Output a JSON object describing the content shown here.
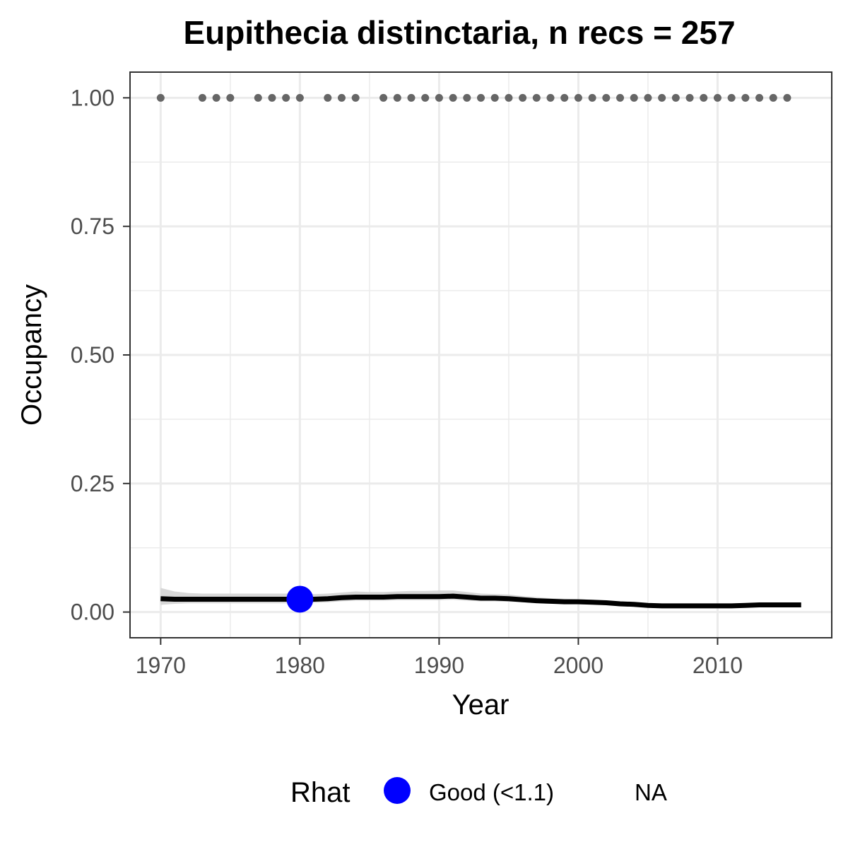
{
  "chart_data": {
    "type": "line",
    "title": "Eupithecia distinctaria, n recs = 257",
    "xlabel": "Year",
    "ylabel": "Occupancy",
    "xlim": [
      1967.8,
      2018.2
    ],
    "ylim": [
      -0.05,
      1.05
    ],
    "x_ticks": [
      1970,
      1980,
      1990,
      2000,
      2010
    ],
    "x_tick_labels": [
      "1970",
      "1980",
      "1990",
      "2000",
      "2010"
    ],
    "y_ticks": [
      0,
      0.25,
      0.5,
      0.75,
      1.0
    ],
    "y_tick_labels": [
      "0.00",
      "0.25",
      "0.50",
      "0.75",
      "1.00"
    ],
    "grid": true,
    "series": [
      {
        "role": "occupancy_mean",
        "color": "#000000",
        "x": [
          1970,
          1971,
          1972,
          1973,
          1974,
          1975,
          1976,
          1977,
          1978,
          1979,
          1980,
          1981,
          1982,
          1983,
          1984,
          1985,
          1986,
          1987,
          1988,
          1989,
          1990,
          1991,
          1992,
          1993,
          1994,
          1995,
          1996,
          1997,
          1998,
          1999,
          2000,
          2001,
          2002,
          2003,
          2004,
          2005,
          2006,
          2007,
          2008,
          2009,
          2010,
          2011,
          2012,
          2013,
          2014,
          2015,
          2016
        ],
        "y": [
          0.026,
          0.025,
          0.025,
          0.025,
          0.025,
          0.025,
          0.025,
          0.025,
          0.025,
          0.025,
          0.025,
          0.025,
          0.026,
          0.028,
          0.029,
          0.029,
          0.029,
          0.03,
          0.03,
          0.03,
          0.03,
          0.031,
          0.029,
          0.027,
          0.027,
          0.026,
          0.024,
          0.022,
          0.021,
          0.02,
          0.02,
          0.019,
          0.018,
          0.016,
          0.015,
          0.013,
          0.012,
          0.012,
          0.012,
          0.012,
          0.012,
          0.012,
          0.013,
          0.014,
          0.014,
          0.014,
          0.014
        ]
      },
      {
        "role": "credible_interval",
        "color": "#d3d3d3",
        "x": [
          1970,
          1971,
          1972,
          1973,
          1974,
          1975,
          1976,
          1977,
          1978,
          1979,
          1980,
          1981,
          1982,
          1983,
          1984,
          1985,
          1986,
          1987,
          1988,
          1989,
          1990,
          1991,
          1992,
          1993,
          1994,
          1995,
          1996,
          1997,
          1998,
          1999,
          2000,
          2001,
          2002,
          2003,
          2004,
          2005,
          2006,
          2007,
          2008,
          2009,
          2010,
          2011,
          2012,
          2013,
          2014,
          2015,
          2016
        ],
        "lower": [
          0.014,
          0.016,
          0.017,
          0.017,
          0.017,
          0.017,
          0.017,
          0.017,
          0.017,
          0.017,
          0.017,
          0.018,
          0.019,
          0.021,
          0.022,
          0.022,
          0.022,
          0.023,
          0.023,
          0.023,
          0.023,
          0.024,
          0.022,
          0.021,
          0.021,
          0.02,
          0.019,
          0.017,
          0.016,
          0.016,
          0.016,
          0.015,
          0.014,
          0.013,
          0.012,
          0.011,
          0.01,
          0.01,
          0.01,
          0.01,
          0.01,
          0.01,
          0.011,
          0.012,
          0.012,
          0.012,
          0.012
        ],
        "upper": [
          0.047,
          0.04,
          0.037,
          0.036,
          0.036,
          0.036,
          0.036,
          0.036,
          0.036,
          0.036,
          0.036,
          0.035,
          0.036,
          0.038,
          0.04,
          0.039,
          0.039,
          0.04,
          0.041,
          0.041,
          0.042,
          0.042,
          0.039,
          0.036,
          0.035,
          0.034,
          0.031,
          0.029,
          0.027,
          0.026,
          0.025,
          0.024,
          0.022,
          0.02,
          0.018,
          0.016,
          0.015,
          0.015,
          0.015,
          0.015,
          0.015,
          0.015,
          0.016,
          0.017,
          0.017,
          0.017,
          0.017
        ]
      },
      {
        "role": "record_years",
        "color": "#666666",
        "x": [
          1970,
          1973,
          1974,
          1975,
          1977,
          1978,
          1979,
          1980,
          1982,
          1983,
          1984,
          1986,
          1987,
          1988,
          1989,
          1990,
          1991,
          1992,
          1993,
          1994,
          1995,
          1996,
          1997,
          1998,
          1999,
          2000,
          2001,
          2002,
          2003,
          2004,
          2005,
          2006,
          2007,
          2008,
          2009,
          2010,
          2011,
          2012,
          2013,
          2014,
          2015
        ],
        "y": 1.0
      },
      {
        "role": "rhat_point",
        "name": "Good (<1.1)",
        "color": "#0000ff",
        "x": [
          1980
        ],
        "y": [
          0.025
        ]
      }
    ],
    "legend": {
      "position": "bottom",
      "title": "Rhat",
      "entries": [
        {
          "label": "Good (<1.1)",
          "color": "#0000ff",
          "shape": "circle"
        },
        {
          "label": "NA",
          "color": null,
          "shape": "none"
        }
      ]
    }
  }
}
